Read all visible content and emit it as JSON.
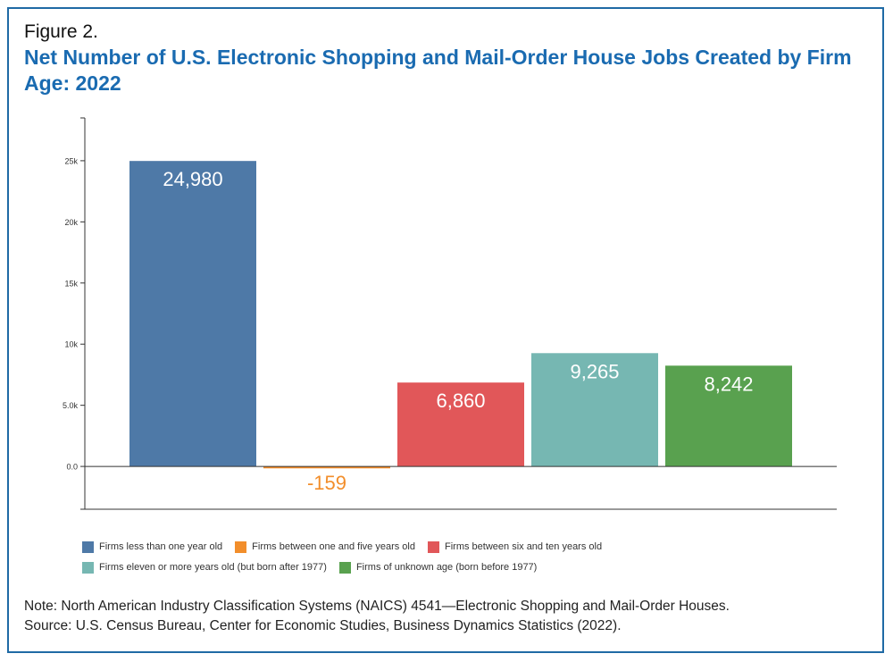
{
  "figure": {
    "label": "Figure 2.",
    "title": "Net Number of U.S. Electronic Shopping and Mail-Order House Jobs Created by Firm Age: 2022"
  },
  "chart_data": {
    "type": "bar",
    "title": "Net Number of U.S. Electronic Shopping and Mail-Order House Jobs Created by Firm Age: 2022",
    "xlabel": "",
    "ylabel": "",
    "ylim": [
      -3500,
      28500
    ],
    "yticks": [
      0,
      5000,
      10000,
      15000,
      20000,
      25000
    ],
    "ytick_labels": [
      "0.0",
      "5.0k",
      "10k",
      "15k",
      "20k",
      "25k"
    ],
    "grid": false,
    "legend_position": "bottom",
    "categories": [
      "Firms less than one year old",
      "Firms between one and five years old",
      "Firms between six and ten years old",
      "Firms eleven or more years old (but born after 1977)",
      "Firms of unknown age (born before 1977)"
    ],
    "values": [
      24980,
      -159,
      6860,
      9265,
      8242
    ],
    "data_labels": [
      "24,980",
      "-159",
      "6,860",
      "9,265",
      "8,242"
    ],
    "colors": [
      "#4e79a7",
      "#f28e2b",
      "#e15759",
      "#76b7b2",
      "#59a14f"
    ]
  },
  "notes": {
    "note": "Note: North American Industry Classification Systems (NAICS) 4541—Electronic Shopping and Mail-Order Houses.",
    "source": "Source: U.S. Census Bureau, Center for Economic Studies, Business Dynamics Statistics (2022)."
  }
}
